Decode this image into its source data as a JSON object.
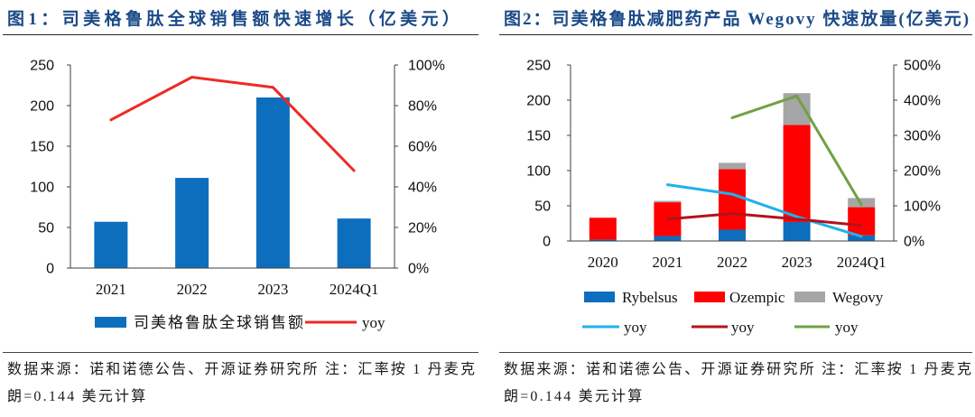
{
  "colors": {
    "title": "#1B4A87",
    "axis": "#3F3F3F"
  },
  "chart_data": [
    {
      "type": "bar",
      "title": "图1：司美格鲁肽全球销售额快速增长（亿美元）",
      "categories": [
        "2021",
        "2022",
        "2023",
        "2024Q1"
      ],
      "stacked": false,
      "ylim": [
        0,
        250
      ],
      "y_tick_labels": [
        "0",
        "50",
        "100",
        "150",
        "200",
        "250"
      ],
      "y2lim": [
        0,
        100
      ],
      "y2_tick_labels": [
        "0%",
        "20%",
        "40%",
        "60%",
        "80%",
        "100%"
      ],
      "legend": "bottom",
      "series": [
        {
          "name": "司美格鲁肽全球销售额",
          "type": "bar",
          "color": "#0E6EBE",
          "values": [
            57,
            111,
            210,
            61
          ]
        },
        {
          "name": "yoy",
          "type": "line",
          "color": "#EE2B24",
          "values": [
            73,
            94,
            89,
            48
          ]
        }
      ],
      "source_lines": [
        "数据来源：诺和诺德公告、开源证券研究所 注：汇率按 1 丹麦克",
        "朗=0.144 美元计算"
      ]
    },
    {
      "type": "bar",
      "title": "图2：司美格鲁肽减肥药产品 Wegovy 快速放量(亿美元)",
      "categories": [
        "2020",
        "2021",
        "2022",
        "2023",
        "2024Q1"
      ],
      "stacked": true,
      "ylim": [
        0,
        250
      ],
      "y_tick_labels": [
        "0",
        "50",
        "100",
        "150",
        "200",
        "250"
      ],
      "y2lim": [
        0,
        500
      ],
      "y2_tick_labels": [
        "0%",
        "100%",
        "200%",
        "300%",
        "400%",
        "500%"
      ],
      "legend": "bottom",
      "series": [
        {
          "name": "Rybelsus",
          "type": "bar",
          "color": "#0E6EBE",
          "values": [
            2,
            7,
            16,
            27,
            8
          ]
        },
        {
          "name": "Ozempic",
          "type": "bar",
          "color": "#FE0000",
          "values": [
            31,
            48,
            86,
            138,
            40
          ]
        },
        {
          "name": "Wegovy",
          "type": "bar",
          "color": "#A6A6A6",
          "values": [
            null,
            2,
            9,
            45,
            13
          ]
        },
        {
          "name": "yoy",
          "type": "line",
          "color": "#1FB1EC",
          "values": [
            null,
            160,
            133,
            69,
            13
          ]
        },
        {
          "name": "yoy",
          "type": "line",
          "color": "#B4121B",
          "values": [
            null,
            62,
            78,
            62,
            44
          ]
        },
        {
          "name": "yoy",
          "type": "line",
          "color": "#70A144",
          "values": [
            null,
            null,
            350,
            412,
            103
          ]
        }
      ],
      "source_lines": [
        "数据来源：诺和诺德公告、开源证券研究所 注：汇率按 1 丹麦克",
        "朗=0.144 美元计算"
      ]
    }
  ]
}
